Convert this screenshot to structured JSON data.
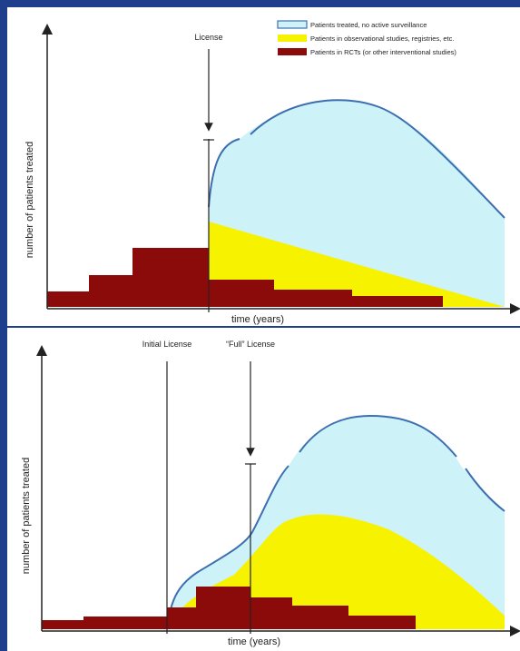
{
  "colors": {
    "frame": "#1f3f8c",
    "untreated_fill": "#cdf3f8",
    "untreated_edge": "#3d6fb0",
    "observational": "#f7f200",
    "rct": "#8b0b0b",
    "divider": "#1f3f8c"
  },
  "legend": {
    "items": [
      {
        "label": "Patients treated, no active surveillance",
        "swatch": "untreated"
      },
      {
        "label": "Patients in observational studies, registries, etc.",
        "swatch": "observational"
      },
      {
        "label": "Patients in RCTs (or other interventional studies)",
        "swatch": "rct"
      }
    ]
  },
  "panels": [
    {
      "ylabel": "number of patients treated",
      "xlabel": "time (years)",
      "annotations": [
        {
          "text": "License"
        }
      ]
    },
    {
      "ylabel": "number of patients treated",
      "xlabel": "time (years)",
      "annotations": [
        {
          "text": "Initial License"
        },
        {
          "text": "“Full” License"
        }
      ]
    }
  ]
}
